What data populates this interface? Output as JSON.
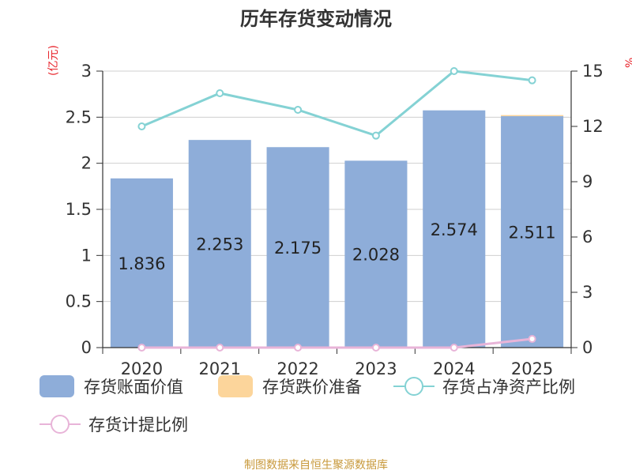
{
  "chart_data": {
    "type": "bar",
    "title": "历年存货变动情况",
    "categories": [
      "2020",
      "2021",
      "2022",
      "2023",
      "2024",
      "2025"
    ],
    "left_axis": {
      "unit": "(亿元)",
      "ylim": [
        0,
        3
      ],
      "ticks": [
        "0",
        "0.5",
        "1",
        "1.5",
        "2",
        "2.5",
        "3"
      ]
    },
    "right_axis": {
      "unit": "%",
      "ylim": [
        0,
        15
      ],
      "ticks": [
        "0",
        "3",
        "6",
        "9",
        "12",
        "15"
      ]
    },
    "series": [
      {
        "name": "存货账面价值",
        "type": "bar",
        "axis": "left",
        "color": "#8eadd9",
        "values": [
          1.836,
          2.253,
          2.175,
          2.028,
          2.574,
          2.511
        ],
        "labels": [
          "1.836",
          "2.253",
          "2.175",
          "2.028",
          "2.574",
          "2.511"
        ]
      },
      {
        "name": "存货跌价准备",
        "type": "bar",
        "axis": "left",
        "color": "#fcd59b",
        "values": [
          0,
          0,
          0,
          0,
          0,
          0.012
        ]
      },
      {
        "name": "存货占净资产比例",
        "type": "line",
        "axis": "right",
        "color": "#84d2d4",
        "values": [
          12.0,
          13.8,
          12.9,
          11.5,
          15.0,
          14.5
        ]
      },
      {
        "name": "存货计提比例",
        "type": "line",
        "axis": "right",
        "color": "#e8b4d8",
        "values": [
          0,
          0,
          0,
          0,
          0,
          0.47
        ]
      }
    ],
    "grid": true
  },
  "footer": {
    "source": "制图数据来自恒生聚源数据库"
  }
}
